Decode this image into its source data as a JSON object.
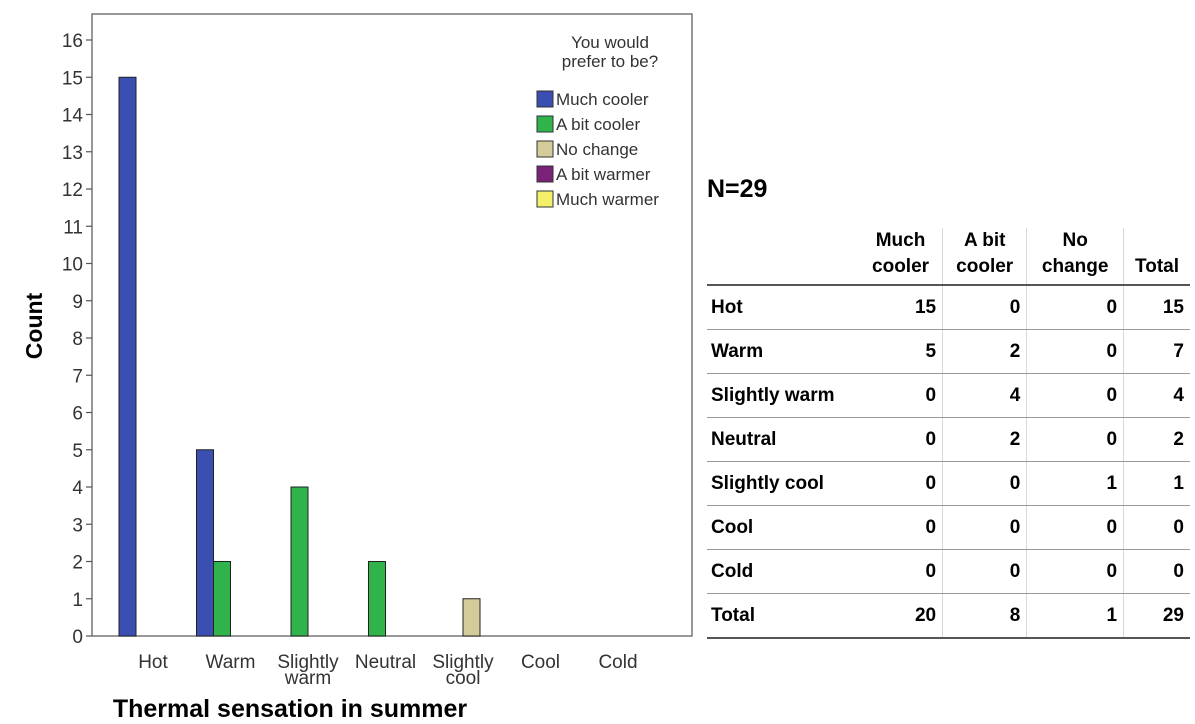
{
  "chart_data": {
    "type": "bar",
    "categories": [
      "Hot",
      "Warm",
      "Slightly warm",
      "Neutral",
      "Slightly cool",
      "Cool",
      "Cold"
    ],
    "category_lines": [
      [
        "Hot"
      ],
      [
        "Warm"
      ],
      [
        "Slightly",
        "warm"
      ],
      [
        "Neutral"
      ],
      [
        "Slightly",
        "cool"
      ],
      [
        "Cool"
      ],
      [
        "Cold"
      ]
    ],
    "series": [
      {
        "name": "Much cooler",
        "color": "#3a4fb1",
        "values": [
          15,
          5,
          0,
          0,
          0,
          0,
          0
        ]
      },
      {
        "name": "A bit cooler",
        "color": "#2fb34a",
        "values": [
          0,
          2,
          4,
          2,
          0,
          0,
          0
        ]
      },
      {
        "name": "No change",
        "color": "#d4cb9a",
        "values": [
          0,
          0,
          0,
          0,
          1,
          0,
          0
        ]
      },
      {
        "name": "A bit warmer",
        "color": "#7a2179",
        "values": [
          0,
          0,
          0,
          0,
          0,
          0,
          0
        ]
      },
      {
        "name": "Much warmer",
        "color": "#f5f06c",
        "values": [
          0,
          0,
          0,
          0,
          0,
          0,
          0
        ]
      }
    ],
    "legend_title": [
      "You would",
      "prefer to be?"
    ],
    "legend_position": "top-right",
    "xlabel": "Thermal sensation in summer",
    "ylabel": "Count",
    "ylim": [
      0,
      16
    ],
    "yticks": [
      0,
      1,
      2,
      3,
      4,
      5,
      6,
      7,
      8,
      9,
      10,
      11,
      12,
      13,
      14,
      15,
      16
    ],
    "grid": false
  },
  "n_label": "N=29",
  "table": {
    "headers": [
      {
        "lines": [
          "",
          ""
        ]
      },
      {
        "lines": [
          "Much",
          "cooler"
        ]
      },
      {
        "lines": [
          "A bit",
          "cooler"
        ]
      },
      {
        "lines": [
          "No",
          "change"
        ]
      },
      {
        "lines": [
          "",
          "Total"
        ]
      }
    ],
    "rows": [
      {
        "label": "Hot",
        "values": [
          "15",
          "0",
          "0",
          "15"
        ]
      },
      {
        "label": "Warm",
        "values": [
          "5",
          "2",
          "0",
          "7"
        ]
      },
      {
        "label": "Slightly warm",
        "values": [
          "0",
          "4",
          "0",
          "4"
        ]
      },
      {
        "label": "Neutral",
        "values": [
          "0",
          "2",
          "0",
          "2"
        ]
      },
      {
        "label": "Slightly cool",
        "values": [
          "0",
          "0",
          "1",
          "1"
        ]
      },
      {
        "label": "Cool",
        "values": [
          "0",
          "0",
          "0",
          "0"
        ]
      },
      {
        "label": "Cold",
        "values": [
          "0",
          "0",
          "0",
          "0"
        ]
      },
      {
        "label": "Total",
        "values": [
          "20",
          "8",
          "1",
          "29"
        ]
      }
    ]
  }
}
